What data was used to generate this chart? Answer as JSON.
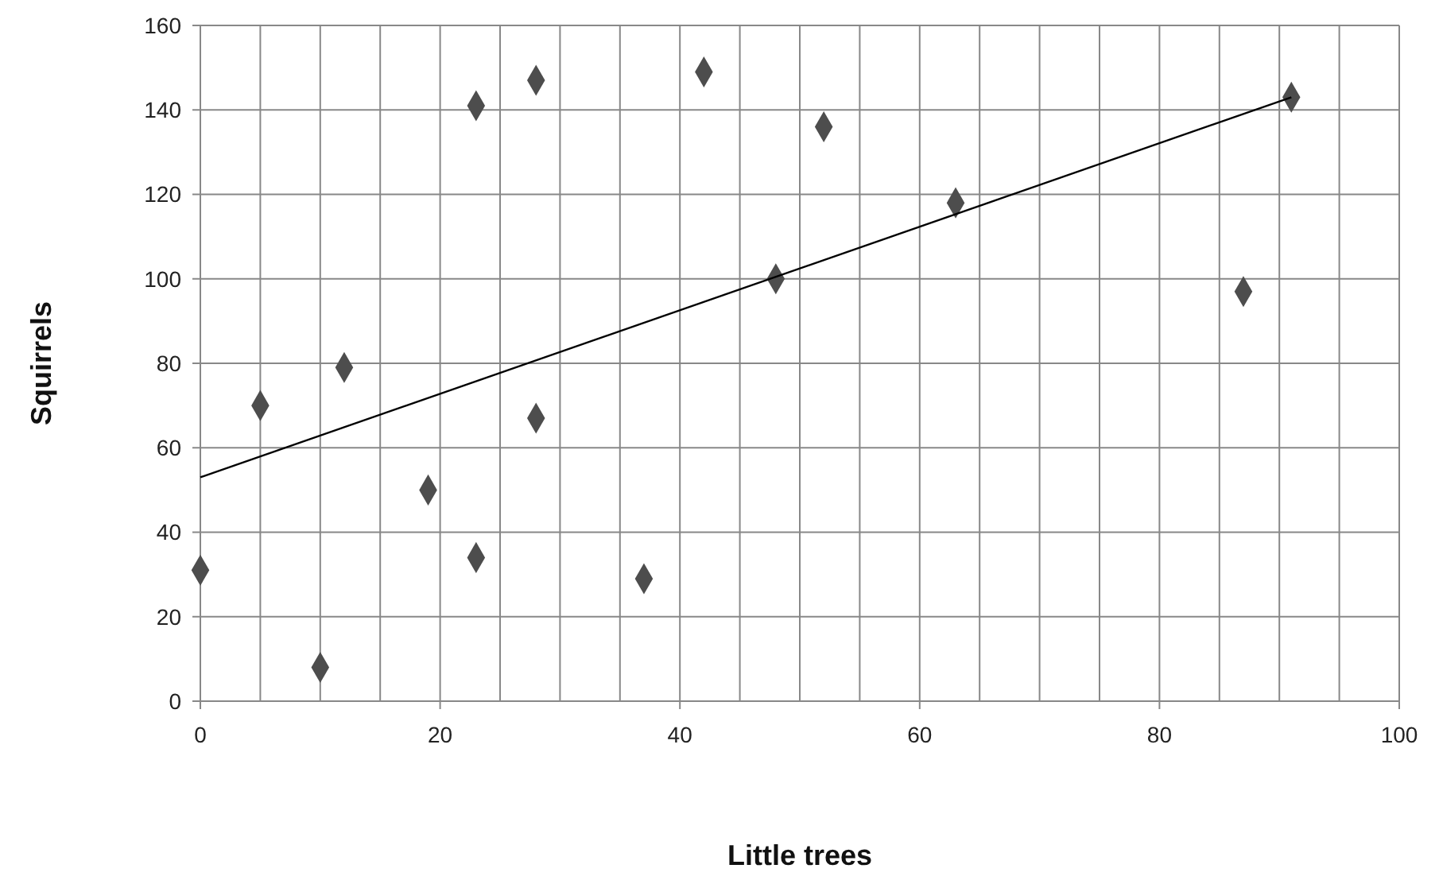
{
  "chart_data": {
    "type": "scatter",
    "xlabel": "Little trees",
    "ylabel": "Squirrels",
    "xlim": [
      0,
      100
    ],
    "ylim": [
      0,
      160
    ],
    "xticks": [
      0,
      {
        "value": 5,
        "label": null
      },
      {
        "value": 10,
        "label": null
      },
      {
        "value": 15,
        "label": null
      },
      20,
      {
        "value": 25,
        "label": null
      },
      {
        "value": 30,
        "label": null
      },
      {
        "value": 35,
        "label": null
      },
      40,
      {
        "value": 45,
        "label": null
      },
      {
        "value": 50,
        "label": null
      },
      {
        "value": 55,
        "label": null
      },
      60,
      {
        "value": 65,
        "label": null
      },
      {
        "value": 70,
        "label": null
      },
      {
        "value": 75,
        "label": null
      },
      80,
      {
        "value": 85,
        "label": null
      },
      {
        "value": 90,
        "label": null
      },
      {
        "value": 95,
        "label": null
      },
      100
    ],
    "yticks": [
      0,
      20,
      40,
      60,
      80,
      100,
      120,
      140,
      160
    ],
    "grid": true,
    "marker": "diamond",
    "series": [
      {
        "color": "#4d4d4d",
        "x": [
          0,
          5,
          10,
          12,
          19,
          23,
          23,
          28,
          28,
          37,
          42,
          48,
          52,
          63,
          87,
          91
        ],
        "values": [
          31,
          70,
          8,
          79,
          50,
          141,
          34,
          147,
          67,
          29,
          149,
          100,
          136,
          118,
          97,
          143
        ]
      },
      {
        "type": "line",
        "color": "#000000",
        "x": [
          0,
          91
        ],
        "values": [
          53,
          143
        ],
        "marker": "none"
      }
    ]
  }
}
